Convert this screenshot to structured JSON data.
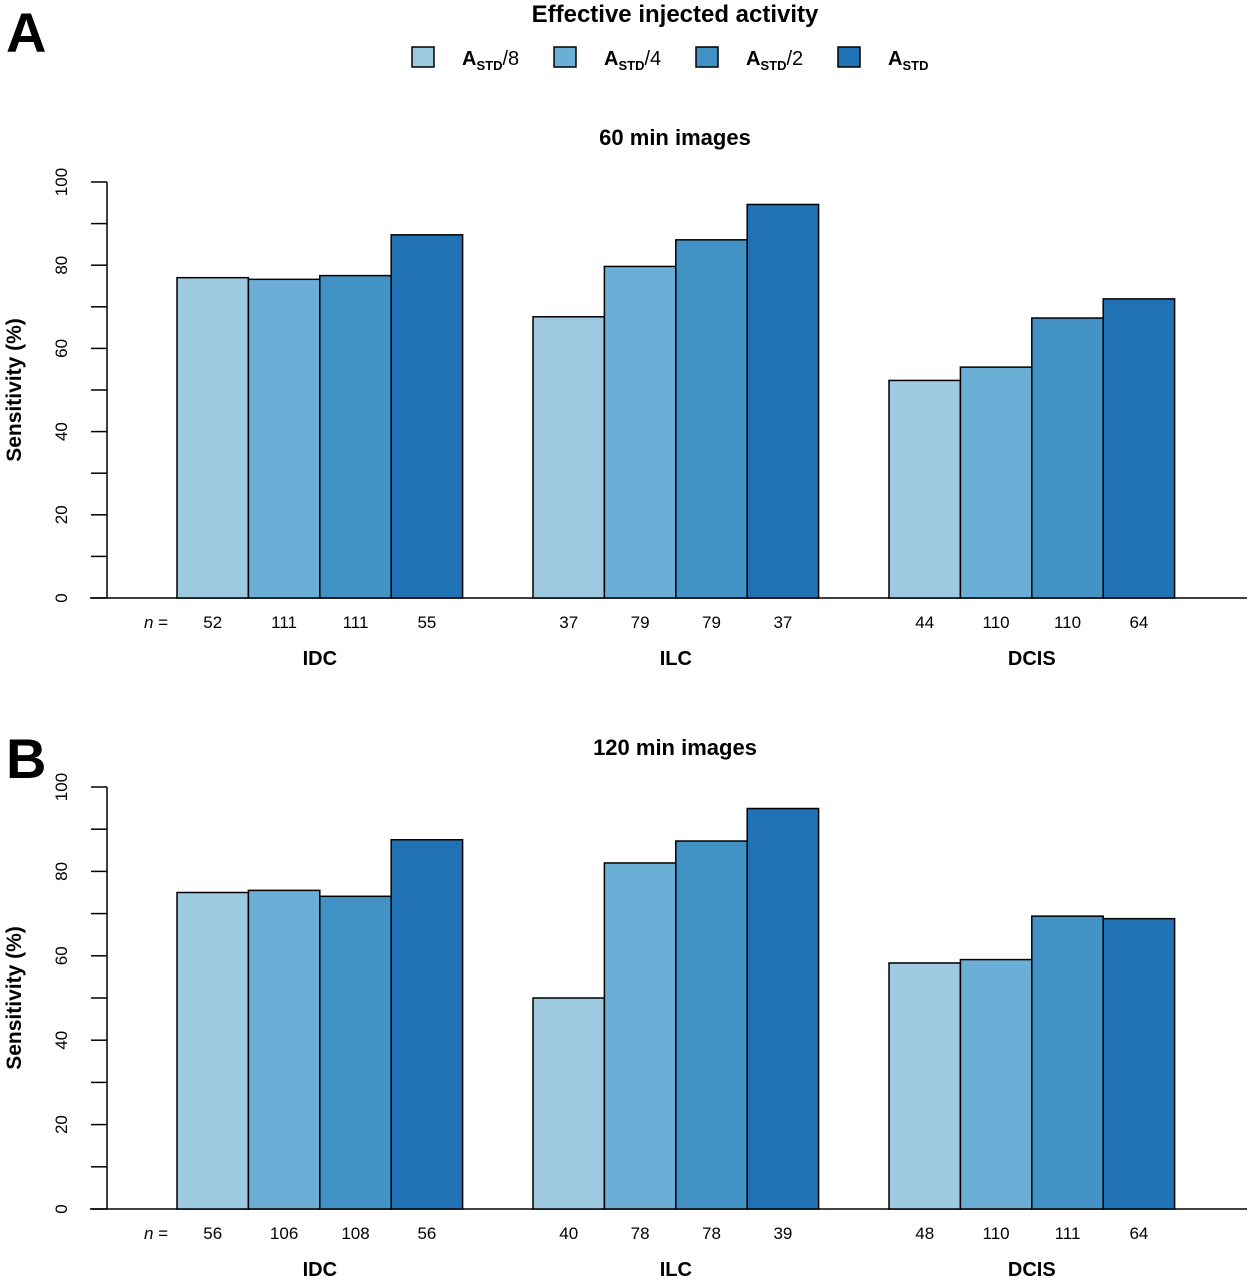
{
  "legend": {
    "title": "Effective injected activity",
    "entries": [
      {
        "main": "A",
        "sub": "STD",
        "rest": "/8",
        "color": "#9ecae1"
      },
      {
        "main": "A",
        "sub": "STD",
        "rest": "/4",
        "color": "#6baed6"
      },
      {
        "main": "A",
        "sub": "STD",
        "rest": "/2",
        "color": "#4292c6"
      },
      {
        "main": "A",
        "sub": "STD",
        "rest": "",
        "color": "#2171b5"
      }
    ]
  },
  "n_label": "n =",
  "chart_data": [
    {
      "type": "bar",
      "panel": "A",
      "title": "60 min images",
      "ylabel": "Sensitivity (%)",
      "ylim": [
        0,
        100
      ],
      "yticks": [
        "0",
        "20",
        "40",
        "60",
        "80",
        "100"
      ],
      "categories": [
        "IDC",
        "ILC",
        "DCIS"
      ],
      "series": [
        {
          "name": "A_STD/8",
          "values": [
            77,
            67.6,
            52.3
          ],
          "n": [
            "52",
            "37",
            "44"
          ]
        },
        {
          "name": "A_STD/4",
          "values": [
            76.6,
            79.7,
            55.5
          ],
          "n": [
            "111",
            "79",
            "110"
          ]
        },
        {
          "name": "A_STD/2",
          "values": [
            77.5,
            86.1,
            67.3
          ],
          "n": [
            "111",
            "79",
            "110"
          ]
        },
        {
          "name": "A_STD",
          "values": [
            87.3,
            94.6,
            71.9
          ],
          "n": [
            "55",
            "37",
            "64"
          ]
        }
      ]
    },
    {
      "type": "bar",
      "panel": "B",
      "title": "120 min images",
      "ylabel": "Sensitivity (%)",
      "ylim": [
        0,
        100
      ],
      "yticks": [
        "0",
        "20",
        "40",
        "60",
        "80",
        "100"
      ],
      "categories": [
        "IDC",
        "ILC",
        "DCIS"
      ],
      "series": [
        {
          "name": "A_STD/8",
          "values": [
            75,
            50,
            58.3
          ],
          "n": [
            "56",
            "40",
            "48"
          ]
        },
        {
          "name": "A_STD/4",
          "values": [
            75.5,
            82,
            59.1
          ],
          "n": [
            "106",
            "78",
            "110"
          ]
        },
        {
          "name": "A_STD/2",
          "values": [
            74.1,
            87.2,
            69.4
          ],
          "n": [
            "108",
            "78",
            "111"
          ]
        },
        {
          "name": "A_STD",
          "values": [
            87.5,
            94.9,
            68.8
          ],
          "n": [
            "56",
            "39",
            "64"
          ]
        }
      ]
    }
  ]
}
